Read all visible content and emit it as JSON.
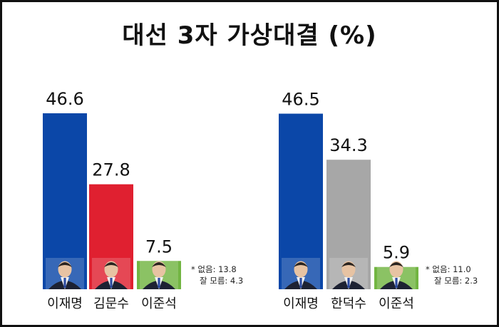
{
  "title": "대선 3자 가상대결 (%)",
  "chart_data": [
    {
      "type": "bar",
      "categories": [
        "이재명",
        "김문수",
        "이준석"
      ],
      "values": [
        46.6,
        27.8,
        7.5
      ],
      "colors": [
        "#0b47a8",
        "#e02030",
        "#72b542"
      ],
      "ylim": [
        0,
        50
      ],
      "grid": false,
      "note": {
        "line1": "* 없음: 13.8",
        "line2": "잘 모름: 4.3"
      }
    },
    {
      "type": "bar",
      "categories": [
        "이재명",
        "한덕수",
        "이준석"
      ],
      "values": [
        46.5,
        34.3,
        5.9
      ],
      "colors": [
        "#0b47a8",
        "#a7a7a7",
        "#72b542"
      ],
      "ylim": [
        0,
        50
      ],
      "grid": false,
      "note": {
        "line1": "* 없음: 11.0",
        "line2": "잘 모름: 2.3"
      }
    }
  ],
  "icons": [
    "person-photo-icon"
  ]
}
